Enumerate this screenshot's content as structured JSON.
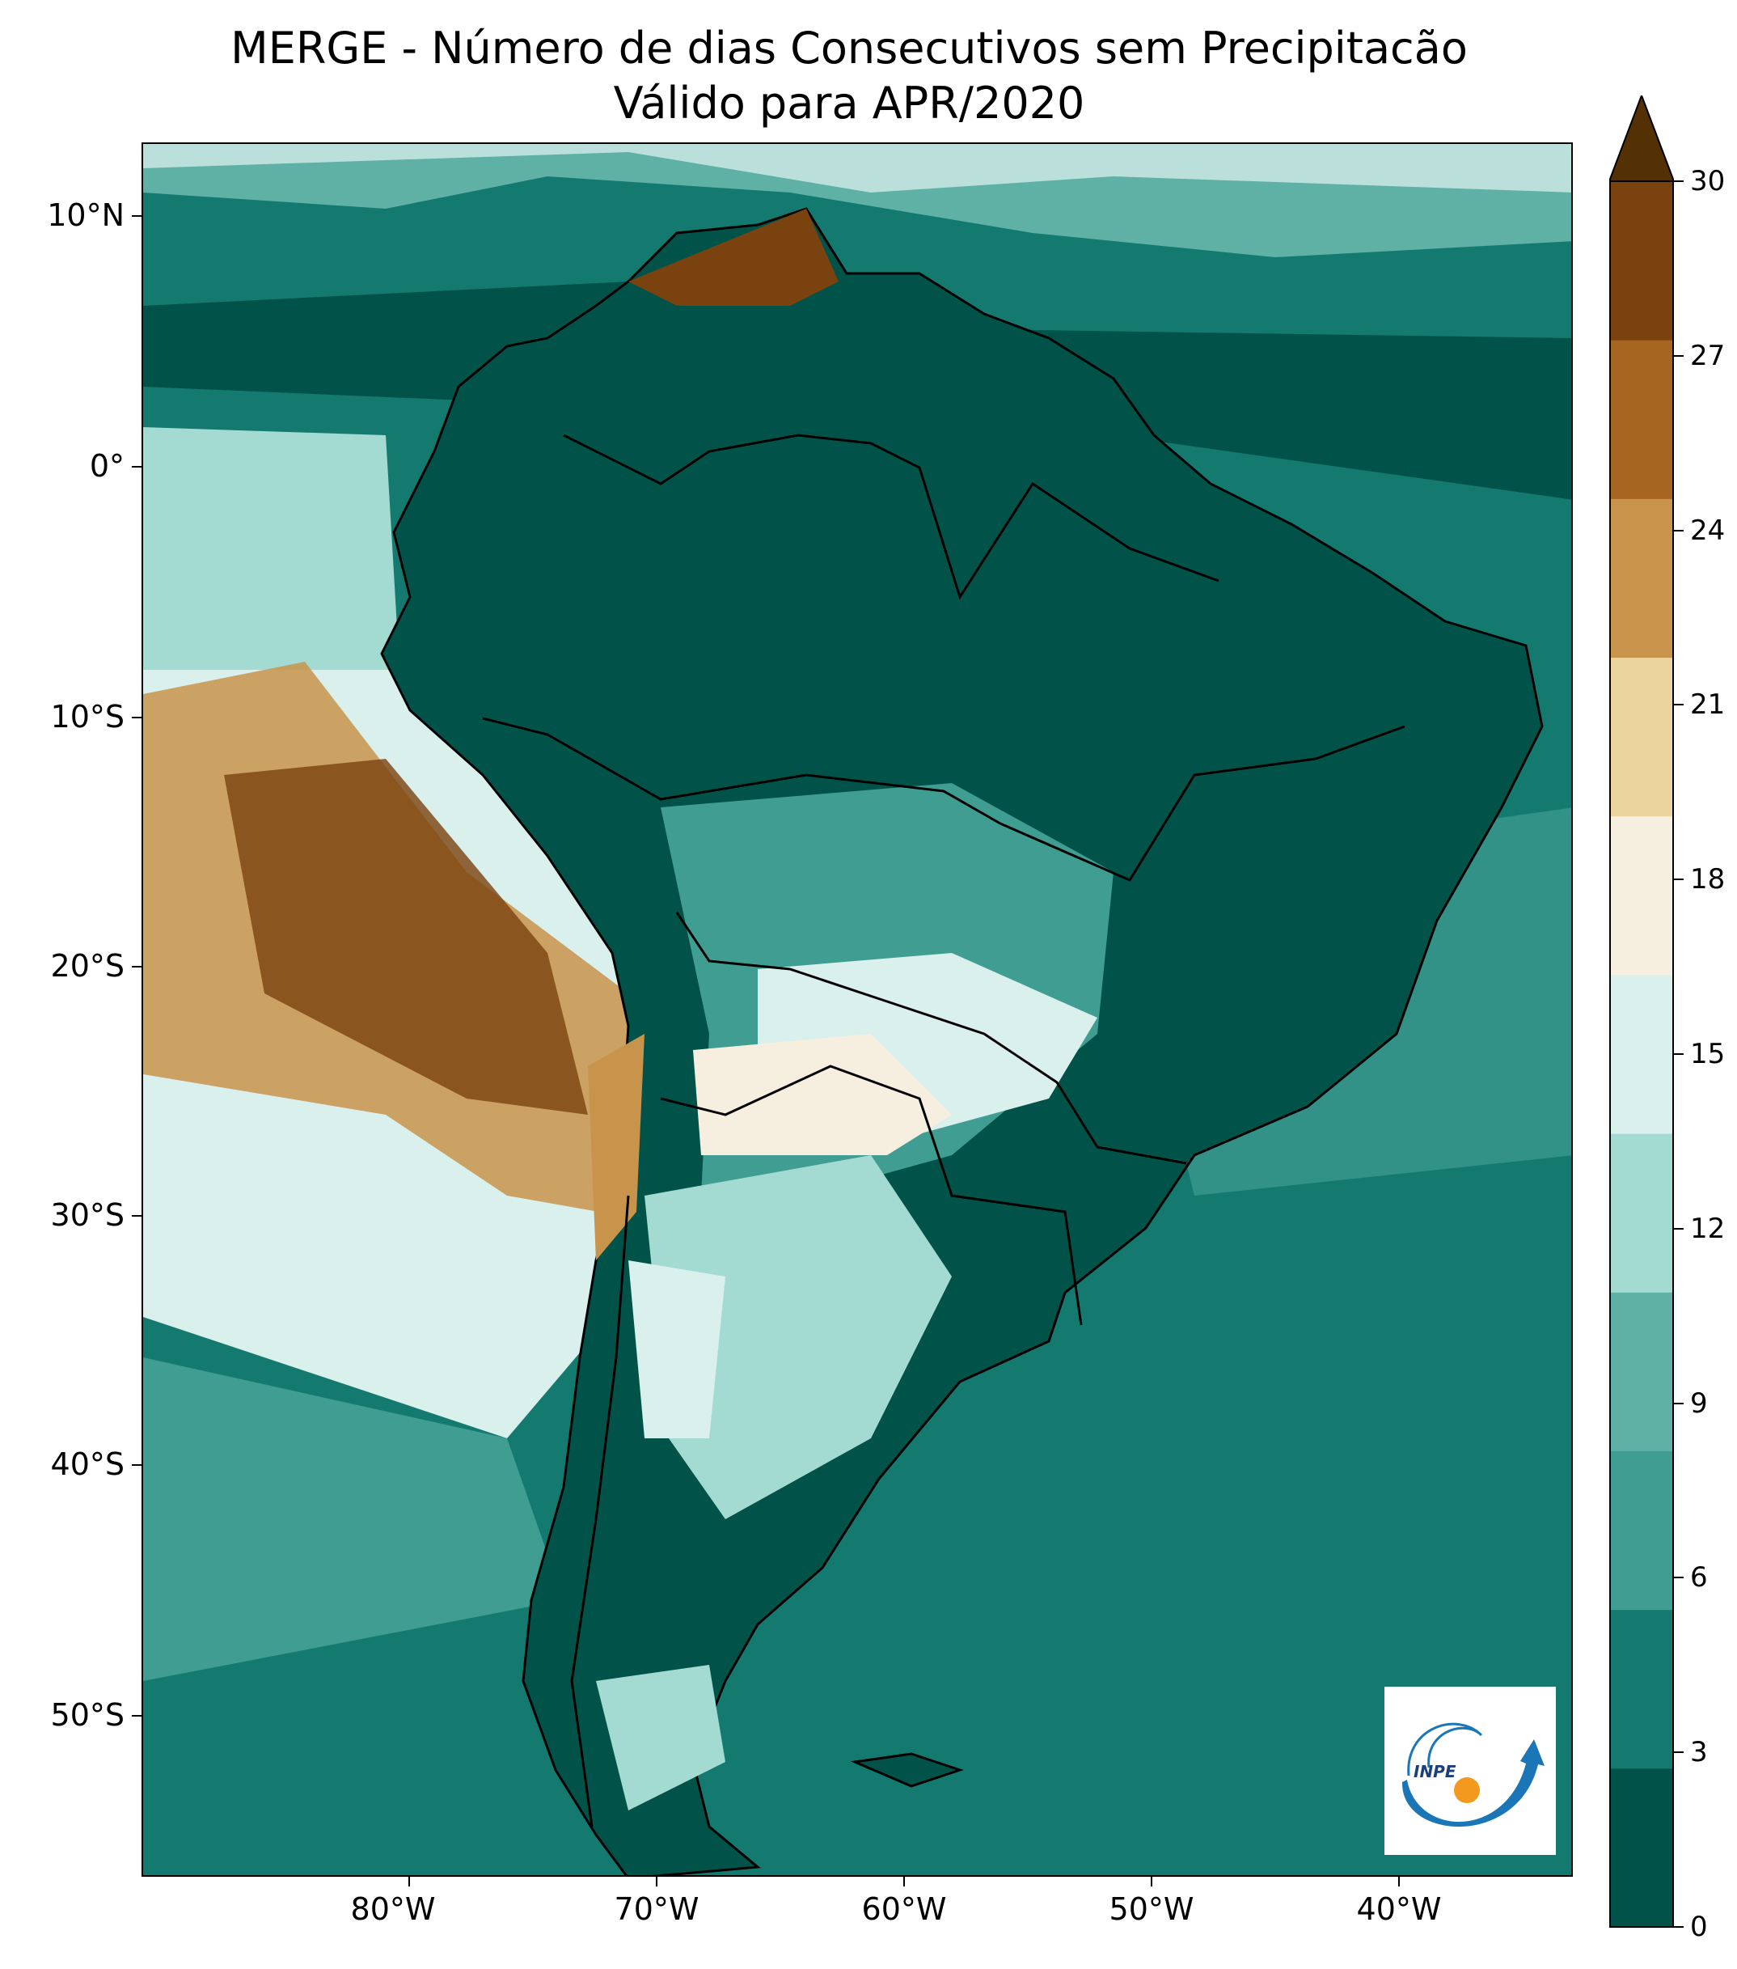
{
  "title": {
    "line1": "MERGE - Número de dias Consecutivos sem Precipitacão",
    "line2": "Válido para APR/2020"
  },
  "map": {
    "latitude_labels": [
      "10°N",
      "0°",
      "10°S",
      "20°S",
      "30°S",
      "40°S",
      "50°S"
    ],
    "longitude_labels": [
      "80°W",
      "70°W",
      "60°W",
      "50°W",
      "40°W"
    ],
    "extent": {
      "lon_min": -89.5,
      "lon_max": -31.5,
      "lat_min": -57.0,
      "lat_max": 13.0
    }
  },
  "colorbar": {
    "tick_labels": [
      "0",
      "3",
      "6",
      "9",
      "12",
      "15",
      "18",
      "21",
      "24",
      "27",
      "30"
    ],
    "colors": [
      "#01534a",
      "#147a70",
      "#3f9d92",
      "#5fb1a5",
      "#a3dbd2",
      "#d9f0ed",
      "#f6efdf",
      "#ebd49e",
      "#c8944b",
      "#a66520",
      "#7a420e"
    ],
    "extend": "max",
    "extend_color": "#543005"
  },
  "logo": {
    "icon": "inpe-logo",
    "text": "INPE"
  }
}
